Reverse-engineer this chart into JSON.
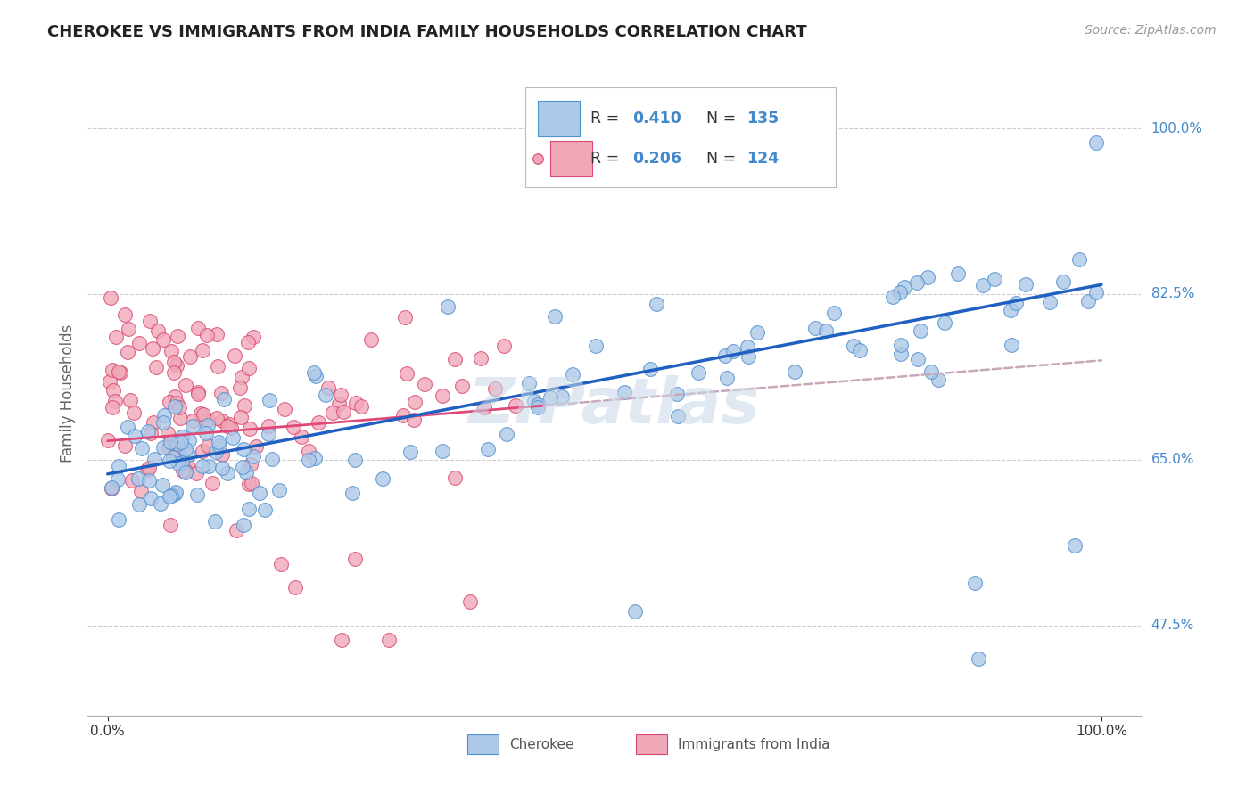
{
  "title": "CHEROKEE VS IMMIGRANTS FROM INDIA FAMILY HOUSEHOLDS CORRELATION CHART",
  "source": "Source: ZipAtlas.com",
  "ylabel": "Family Households",
  "xlim": [
    0.0,
    1.0
  ],
  "ylim": [
    0.38,
    1.06
  ],
  "ytick_vals": [
    0.475,
    0.65,
    0.825,
    1.0
  ],
  "ytick_labels": [
    "47.5%",
    "65.0%",
    "82.5%",
    "100.0%"
  ],
  "xtick_vals": [
    0.0,
    1.0
  ],
  "xtick_labels": [
    "0.0%",
    "100.0%"
  ],
  "cherokee_R": "0.410",
  "cherokee_N": "135",
  "india_R": "0.206",
  "india_N": "124",
  "cherokee_color": "#adc8e8",
  "cherokee_edge_color": "#5090d0",
  "india_color": "#f0a8b8",
  "india_edge_color": "#d84870",
  "cherokee_line_color": "#2060c0",
  "india_line_color": "#e04878",
  "india_dashed_color": "#c8a8b8",
  "watermark": "ZIPatlas",
  "watermark_color": "#c8d8e8",
  "legend_label_1": "Cherokee",
  "legend_label_2": "Immigrants from India",
  "title_fontsize": 13,
  "source_fontsize": 10,
  "label_color": "#4488cc",
  "text_color": "#333333"
}
